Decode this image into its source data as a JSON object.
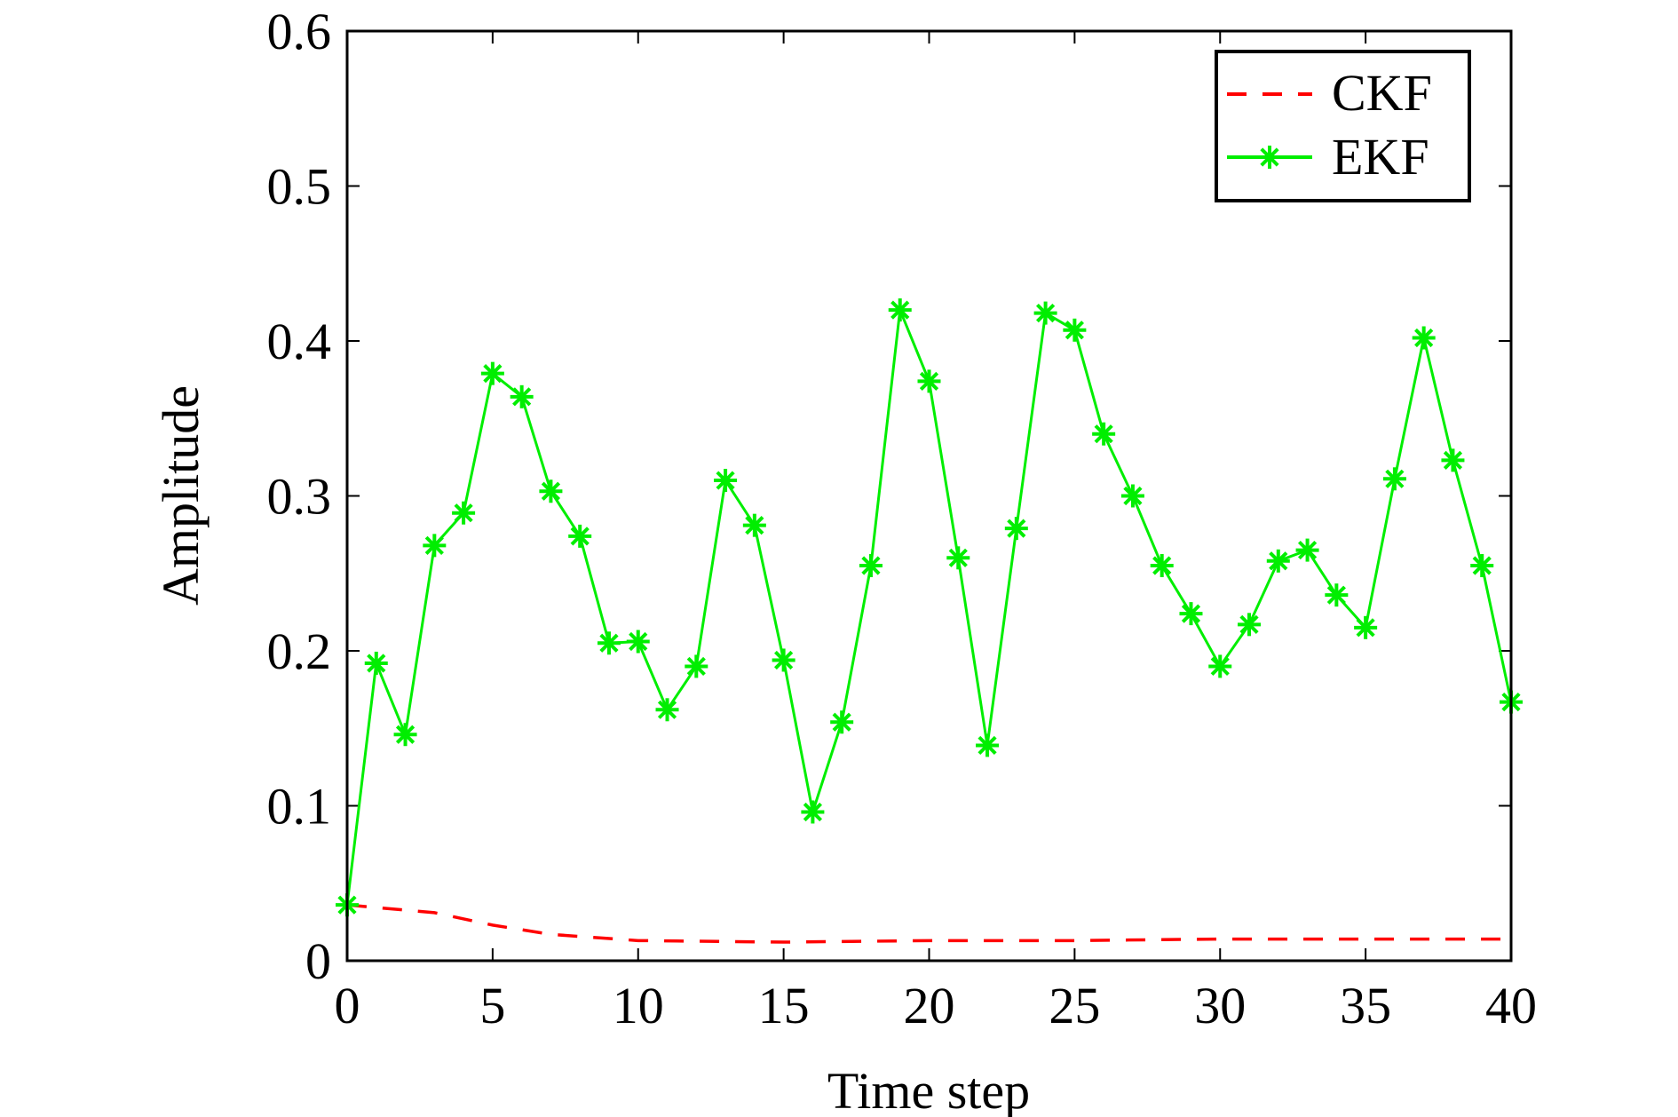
{
  "chart_data": {
    "type": "line",
    "title": "",
    "xlabel": "Time step",
    "ylabel": "Amplitude",
    "xlim": [
      0,
      40
    ],
    "ylim": [
      0,
      0.6
    ],
    "xticks": [
      0,
      5,
      10,
      15,
      20,
      25,
      30,
      35,
      40
    ],
    "xtick_labels": [
      "0",
      "5",
      "10",
      "15",
      "20",
      "25",
      "30",
      "35",
      "40"
    ],
    "yticks": [
      0,
      0.1,
      0.2,
      0.3,
      0.4,
      0.5,
      0.6
    ],
    "ytick_labels": [
      "0",
      "0.1",
      "0.2",
      "0.3",
      "0.4",
      "0.5",
      "0.6"
    ],
    "grid": false,
    "legend_position": "top-right",
    "series": [
      {
        "name": "CKF",
        "color": "#ff0000",
        "style": "dashed",
        "marker": "none",
        "x": [
          0,
          3,
          5,
          7,
          10,
          15,
          20,
          25,
          30,
          35,
          40
        ],
        "values": [
          0.036,
          0.031,
          0.023,
          0.017,
          0.013,
          0.012,
          0.013,
          0.013,
          0.014,
          0.014,
          0.014
        ]
      },
      {
        "name": "EKF",
        "color": "#00ee00",
        "style": "solid",
        "marker": "asterisk",
        "x": [
          0,
          1,
          2,
          3,
          4,
          5,
          6,
          7,
          8,
          9,
          10,
          11,
          12,
          13,
          14,
          15,
          16,
          17,
          18,
          19,
          20,
          21,
          22,
          23,
          24,
          25,
          26,
          27,
          28,
          29,
          30,
          31,
          32,
          33,
          34,
          35,
          36,
          37,
          38,
          39,
          40
        ],
        "values": [
          0.036,
          0.192,
          0.146,
          0.268,
          0.289,
          0.379,
          0.364,
          0.303,
          0.274,
          0.205,
          0.206,
          0.162,
          0.19,
          0.31,
          0.281,
          0.194,
          0.096,
          0.154,
          0.255,
          0.42,
          0.374,
          0.26,
          0.139,
          0.279,
          0.418,
          0.407,
          0.34,
          0.3,
          0.255,
          0.224,
          0.19,
          0.217,
          0.258,
          0.265,
          0.236,
          0.215,
          0.311,
          0.402,
          0.323,
          0.255,
          0.167
        ]
      }
    ]
  }
}
